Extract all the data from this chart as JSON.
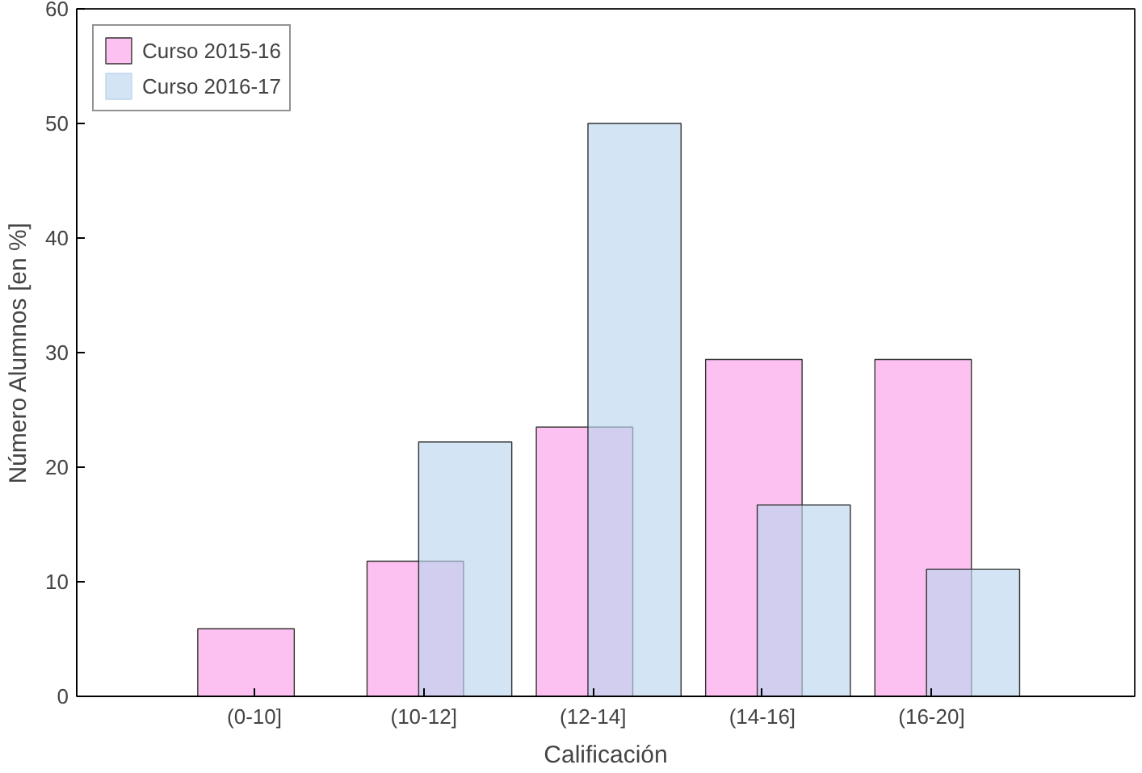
{
  "chart_data": {
    "type": "bar",
    "xlabel": "Calificación",
    "ylabel": "Número Alumnos [en %]",
    "categories": [
      "(0-10]",
      "(10-12]",
      "(12-14]",
      "(14-16]",
      "(16-20]"
    ],
    "series": [
      {
        "name": "Curso 2015-16",
        "color": "#fb9fea",
        "values": [
          5.9,
          11.8,
          23.5,
          29.4,
          29.4
        ]
      },
      {
        "name": "Curso 2016-17",
        "color": "#bcd5ee",
        "values": [
          0,
          22.2,
          50,
          16.7,
          11.1
        ]
      }
    ],
    "ylim": [
      0,
      60
    ],
    "yticks": [
      0,
      10,
      20,
      30,
      40,
      50,
      60
    ],
    "grid": false,
    "legend": "top left"
  }
}
